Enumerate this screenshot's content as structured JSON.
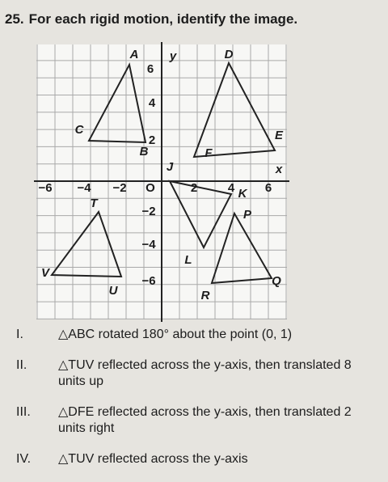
{
  "question": {
    "number": "25.",
    "text": "For each rigid motion, identify the image."
  },
  "graph": {
    "x_axis_label": "x",
    "y_axis_label": "y",
    "x_tick_labels": [
      "−6",
      "−4",
      "−2",
      "O",
      "2",
      "4",
      "6"
    ],
    "y_tick_labels": [
      "6",
      "4",
      "2",
      "−2",
      "−4",
      "−6"
    ],
    "points": [
      "A",
      "B",
      "C",
      "D",
      "E",
      "F",
      "J",
      "K",
      "L",
      "P",
      "Q",
      "R",
      "T",
      "U",
      "V"
    ]
  },
  "options": [
    {
      "numeral": "I.",
      "text": "△ABC rotated 180° about the point (0, 1)"
    },
    {
      "numeral": "II.",
      "text": "△TUV reflected across the y-axis, then translated 8 units up"
    },
    {
      "numeral": "III.",
      "text": "△DFE reflected across the y-axis, then translated 2 units right"
    },
    {
      "numeral": "IV.",
      "text": "△TUV reflected across the y-axis"
    }
  ]
}
